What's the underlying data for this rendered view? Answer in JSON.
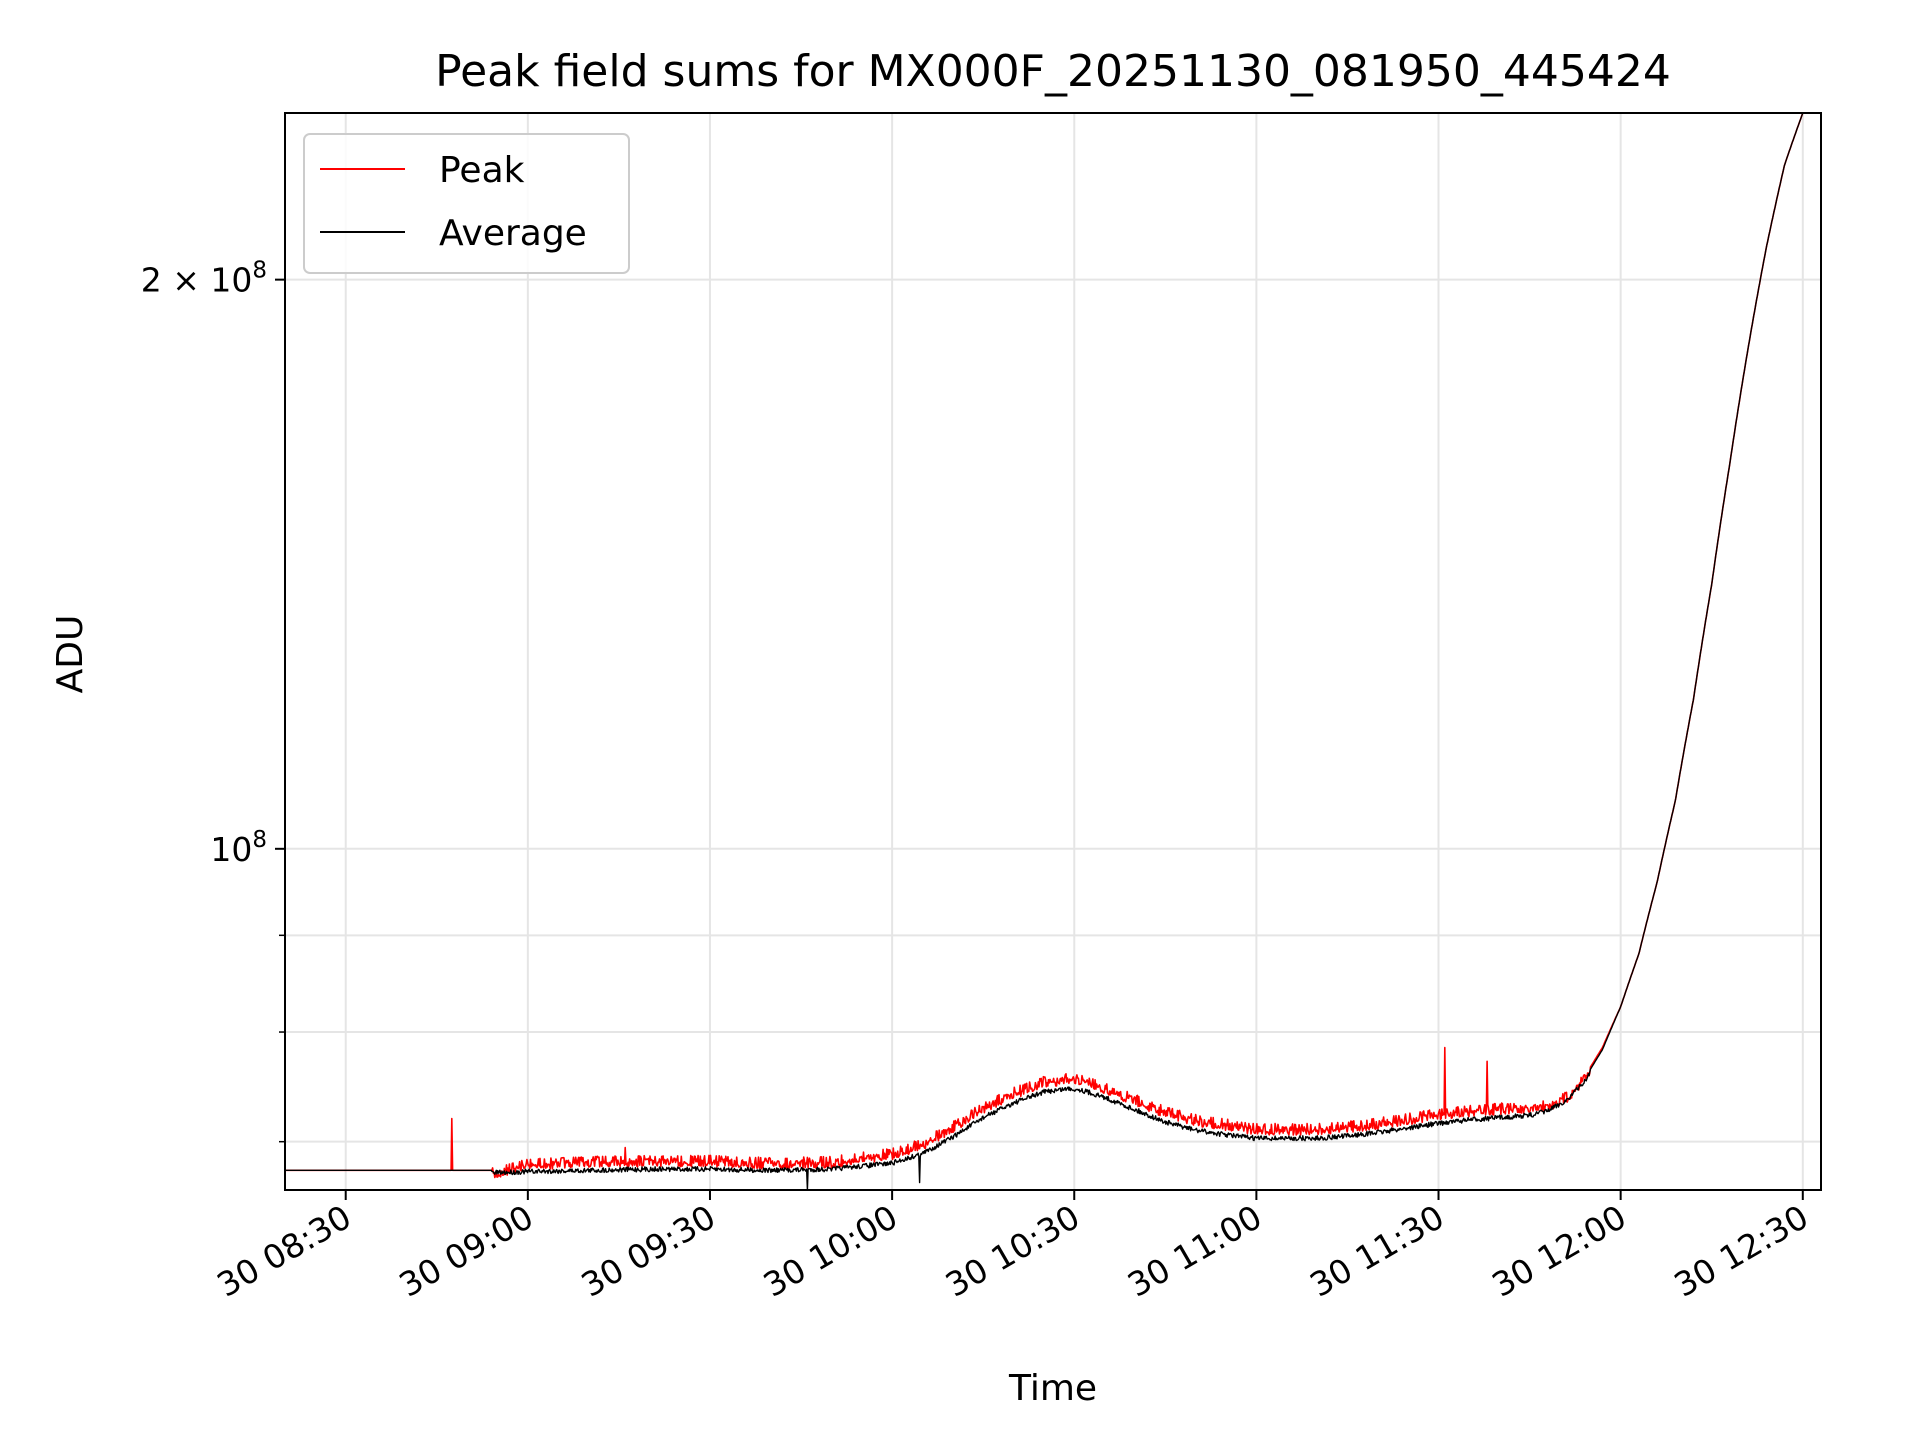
{
  "chart_data": {
    "type": "line",
    "title": "Peak field sums for MX000F_20251130_081950_445424",
    "xlabel": "Time",
    "ylabel": "ADU",
    "yscale": "log",
    "grid": true,
    "legend_position": "upper-left",
    "xlim_minutes": [
      -10,
      243
    ],
    "ylim": [
      66000000,
      245000000
    ],
    "x_unit": "minutes after 30 08:30",
    "x_ticks": [
      {
        "label": "30 08:30",
        "minutes": 0
      },
      {
        "label": "30 09:00",
        "minutes": 30
      },
      {
        "label": "30 09:30",
        "minutes": 60
      },
      {
        "label": "30 10:00",
        "minutes": 90
      },
      {
        "label": "30 10:30",
        "minutes": 120
      },
      {
        "label": "30 11:00",
        "minutes": 150
      },
      {
        "label": "30 11:30",
        "minutes": 180
      },
      {
        "label": "30 12:00",
        "minutes": 210
      },
      {
        "label": "30 12:30",
        "minutes": 240
      }
    ],
    "y_ticks_major": [
      {
        "value": 200000000,
        "mantissa": "2",
        "times": "×",
        "base": "10",
        "exponent": "8"
      },
      {
        "value": 100000000,
        "mantissa": "",
        "times": "",
        "base": "10",
        "exponent": "8"
      }
    ],
    "y_ticks_minor": [
      70000000,
      80000000,
      90000000
    ],
    "series": [
      {
        "name": "Peak",
        "color": "#ff0000",
        "x": [
          -10,
          0,
          20,
          24.5,
          30,
          40,
          50,
          60,
          70,
          80,
          90,
          95,
          100,
          105,
          110,
          115,
          119,
          121,
          125,
          130,
          135,
          140,
          145,
          150,
          155,
          160,
          165,
          170,
          175,
          180,
          185,
          190,
          195,
          198,
          201,
          204,
          207,
          210,
          213,
          216,
          219,
          222,
          225,
          228,
          231,
          234,
          237,
          240,
          243
        ],
        "y": [
          67600000,
          67600000,
          67600000,
          67600000,
          68300000,
          68500000,
          68600000,
          68600000,
          68400000,
          68500000,
          69200000,
          70000000,
          71500000,
          73200000,
          74500000,
          75500000,
          75800000,
          75700000,
          75000000,
          73900000,
          72800000,
          72100000,
          71700000,
          71300000,
          71300000,
          71300000,
          71500000,
          71800000,
          72200000,
          72600000,
          72900000,
          73100000,
          73200000,
          73400000,
          74100000,
          75700000,
          78500000,
          82500000,
          88000000,
          96000000,
          106000000,
          120000000,
          138000000,
          160000000,
          184000000,
          208000000,
          230000000,
          245000000,
          245000000
        ],
        "spikes": [
          {
            "x": 17.5,
            "y": 72000000
          },
          {
            "x": 46,
            "y": 69500000
          },
          {
            "x": 181,
            "y": 78500000
          },
          {
            "x": 188,
            "y": 77200000
          }
        ]
      },
      {
        "name": "Average",
        "color": "#000000",
        "x": [
          -10,
          0,
          20,
          24.5,
          30,
          40,
          50,
          60,
          70,
          80,
          90,
          95,
          100,
          105,
          110,
          115,
          119,
          121,
          125,
          130,
          135,
          140,
          145,
          150,
          155,
          160,
          165,
          170,
          175,
          180,
          185,
          190,
          195,
          198,
          201,
          204,
          207,
          210,
          213,
          216,
          219,
          222,
          225,
          228,
          231,
          234,
          237,
          240,
          243
        ],
        "y": [
          67600000,
          67600000,
          67600000,
          67600000,
          67700000,
          67800000,
          67900000,
          67900000,
          67800000,
          67900000,
          68400000,
          69200000,
          70600000,
          72300000,
          73600000,
          74600000,
          74900000,
          74800000,
          74100000,
          73000000,
          71900000,
          71200000,
          70800000,
          70500000,
          70500000,
          70500000,
          70700000,
          71000000,
          71400000,
          71800000,
          72100000,
          72300000,
          72500000,
          72900000,
          73800000,
          75500000,
          78300000,
          82500000,
          88000000,
          96000000,
          106000000,
          120000000,
          138000000,
          160000000,
          184000000,
          208000000,
          230000000,
          245000000,
          245000000
        ],
        "spikes": [
          {
            "x": 76,
            "y": 66000000
          },
          {
            "x": 94.5,
            "y": 66600000
          },
          {
            "x": 148,
            "y": 70400000
          }
        ]
      }
    ]
  }
}
